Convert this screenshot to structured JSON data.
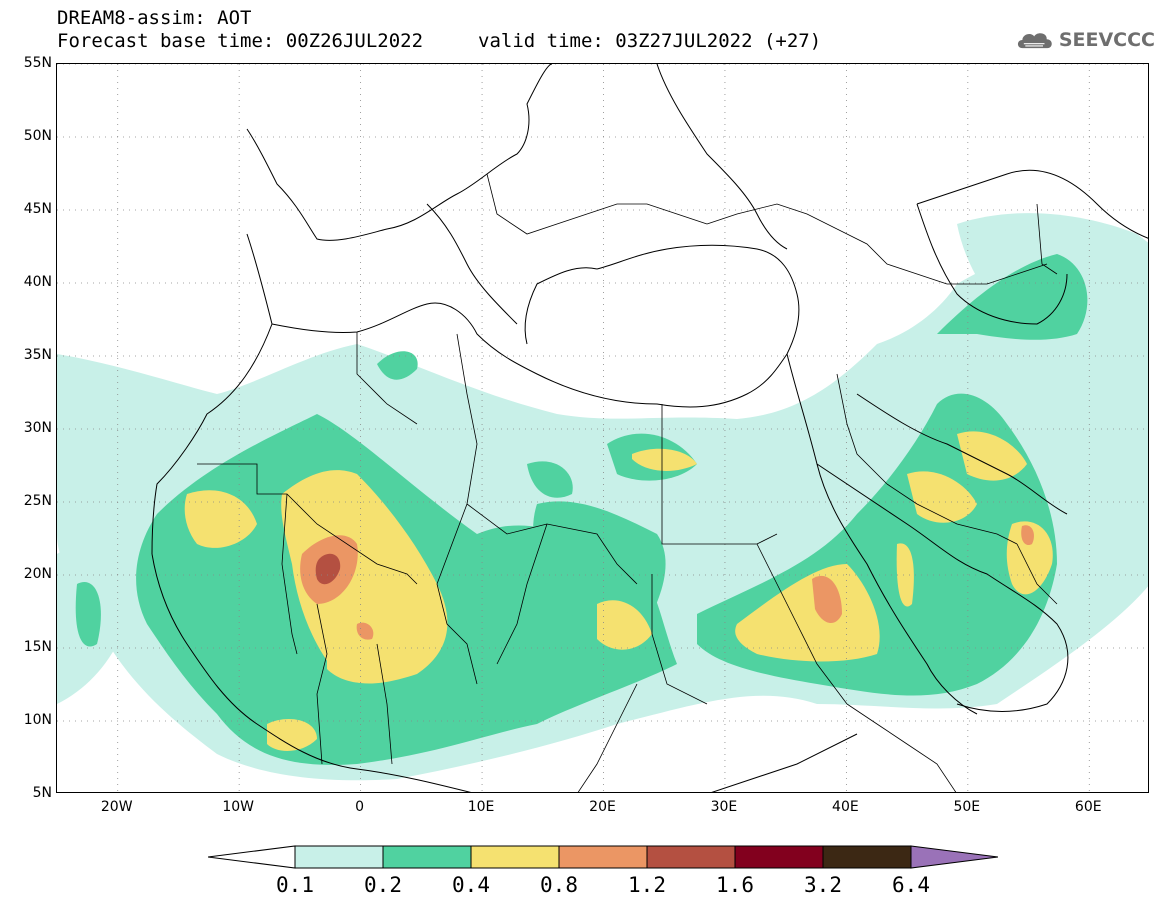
{
  "title": {
    "line1": "DREAM8-assim: AOT",
    "line2": "Forecast base time: 00Z26JUL2022",
    "valid": "valid time: 03Z27JUL2022 (+27)"
  },
  "logo": {
    "icon": "cloud-icon",
    "text": "SEEVCCC"
  },
  "map": {
    "lon_range": [
      -25,
      65
    ],
    "lat_range": [
      5,
      55
    ],
    "lat_ticks": [
      {
        "value": 55,
        "label": "55N"
      },
      {
        "value": 50,
        "label": "50N"
      },
      {
        "value": 45,
        "label": "45N"
      },
      {
        "value": 40,
        "label": "40N"
      },
      {
        "value": 35,
        "label": "35N"
      },
      {
        "value": 30,
        "label": "30N"
      },
      {
        "value": 25,
        "label": "25N"
      },
      {
        "value": 20,
        "label": "20N"
      },
      {
        "value": 15,
        "label": "15N"
      },
      {
        "value": 10,
        "label": "10N"
      },
      {
        "value": 5,
        "label": "5N"
      }
    ],
    "lon_ticks": [
      {
        "value": -20,
        "label": "20W"
      },
      {
        "value": -10,
        "label": "10W"
      },
      {
        "value": 0,
        "label": "0"
      },
      {
        "value": 10,
        "label": "10E"
      },
      {
        "value": 20,
        "label": "20E"
      },
      {
        "value": 30,
        "label": "30E"
      },
      {
        "value": 40,
        "label": "40E"
      },
      {
        "value": 50,
        "label": "50E"
      },
      {
        "value": 60,
        "label": "60E"
      }
    ],
    "gridlines": "dotted"
  },
  "colorbar": {
    "levels": [
      "0.1",
      "0.2",
      "0.4",
      "0.8",
      "1.2",
      "1.6",
      "3.2",
      "6.4"
    ],
    "colors": [
      "#ffffff",
      "#c8f0e8",
      "#50d2a0",
      "#f5e170",
      "#eb9664",
      "#b45041",
      "#82001e",
      "#3c2814",
      "#9a72b8"
    ]
  }
}
